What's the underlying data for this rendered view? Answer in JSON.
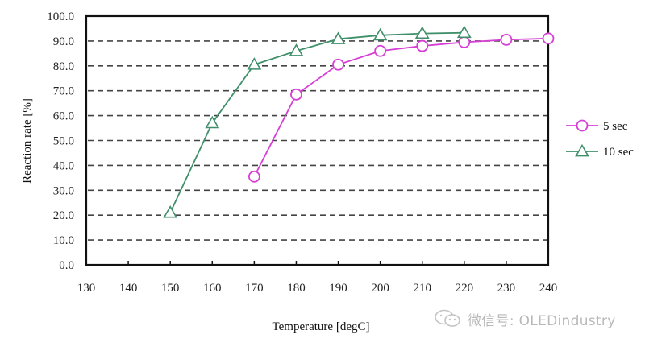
{
  "chart_data": {
    "type": "line",
    "title": "",
    "xlabel": "Temperature [degC]",
    "ylabel": "Reaction rate [%]",
    "xlim": [
      130,
      240
    ],
    "ylim": [
      0,
      100
    ],
    "x_ticks": [
      130,
      140,
      150,
      160,
      170,
      180,
      190,
      200,
      210,
      220,
      230,
      240
    ],
    "x_tick_labels": [
      "130",
      "140",
      "150",
      "160",
      "170",
      "180",
      "190",
      "200",
      "210",
      "220",
      "230",
      "240"
    ],
    "y_ticks": [
      0,
      10,
      20,
      30,
      40,
      50,
      60,
      70,
      80,
      90,
      100
    ],
    "y_tick_labels": [
      "0.0",
      "10.0",
      "20.0",
      "30.0",
      "40.0",
      "50.0",
      "60.0",
      "70.0",
      "80.0",
      "90.0",
      "100.0"
    ],
    "grid": {
      "horizontal": true,
      "style": "dashed",
      "vertical": false
    },
    "legend_position": "right",
    "series": [
      {
        "name": "5 sec",
        "color": "#d63fd6",
        "marker": "circle",
        "x": [
          170,
          180,
          190,
          200,
          210,
          220,
          230,
          240
        ],
        "values": [
          35.5,
          68.5,
          80.5,
          86.0,
          88.0,
          89.5,
          90.5,
          91.0
        ]
      },
      {
        "name": "10 sec",
        "color": "#3f8f6a",
        "marker": "triangle",
        "x": [
          150,
          160,
          170,
          180,
          190,
          200,
          210,
          220
        ],
        "values": [
          21.0,
          57.0,
          80.5,
          86.0,
          90.8,
          92.3,
          93.0,
          93.3
        ]
      }
    ]
  },
  "watermark": {
    "text": "微信号: OLEDindustry",
    "icon": "wechat-icon"
  }
}
